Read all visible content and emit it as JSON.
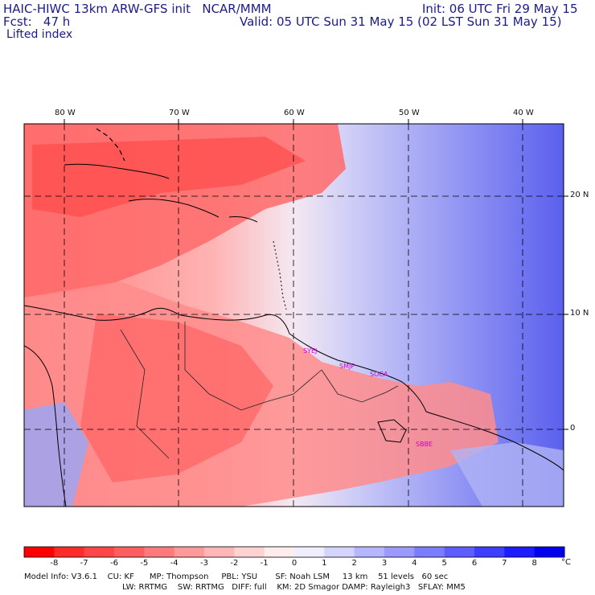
{
  "header": {
    "line1_left": "HAIC-HIWC 13km ARW-GFS init   NCAR/MMM",
    "line1_right": "Init: 06 UTC Fri 29 May 15",
    "line2_left": "Fcst:   47 h",
    "line2_right": "Valid: 05 UTC Sun 31 May 15 (02 LST Sun 31 May 15)",
    "line3": "Lifted index"
  },
  "map": {
    "lon_labels": [
      "80 W",
      "70 W",
      "60 W",
      "50 W",
      "40 W"
    ],
    "lat_labels": [
      "20 N",
      "10 N",
      "0"
    ],
    "sites": [
      "SYEJ",
      "SMJP",
      "SOCA",
      "SBBE"
    ]
  },
  "colorbar": {
    "ticks": [
      "-8",
      "-7",
      "-6",
      "-5",
      "-4",
      "-3",
      "-2",
      "-1",
      "0",
      "1",
      "2",
      "3",
      "4",
      "5",
      "6",
      "7",
      "8"
    ],
    "unit": "°C",
    "colors": [
      "#ff0000",
      "#ff2b2b",
      "#ff4646",
      "#ff5e5e",
      "#ff7a7a",
      "#ff9a9a",
      "#ffb6b6",
      "#ffd2d2",
      "#ffecec",
      "#eeeeff",
      "#d4d4ff",
      "#b6b6ff",
      "#9a9aff",
      "#7c7cff",
      "#5e5eff",
      "#3e3eff",
      "#1c1cff",
      "#0000ee"
    ]
  },
  "footer": {
    "line1": "Model Info: V3.6.1    CU: KF      MP: Thompson     PBL: YSU       SF: Noah LSM     13 km    51 levels   60 sec",
    "line2": "LW: RRTMG    SW: RRTMG   DIFF: full    KM: 2D Smagor DAMP: Rayleigh3   SFLAY: MM5"
  }
}
